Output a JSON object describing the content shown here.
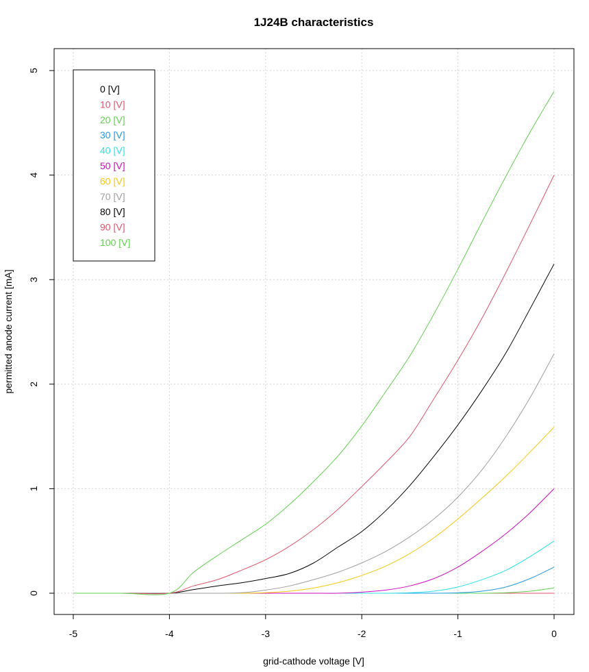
{
  "chart_data": {
    "type": "line",
    "title": "1J24B characteristics",
    "xlabel": "grid-cathode voltage [V]",
    "ylabel": "permitted anode current [mA]",
    "xlim": [
      -5,
      0
    ],
    "ylim": [
      0,
      5
    ],
    "xticks": [
      -5,
      -4,
      -3,
      -2,
      -1,
      0
    ],
    "yticks": [
      0,
      1,
      2,
      3,
      4,
      5
    ],
    "grid": true,
    "legend_position": "top-left",
    "x": [
      -5,
      -4.5,
      -4,
      -3.75,
      -3.5,
      -3.25,
      -3,
      -2.75,
      -2.5,
      -2.25,
      -2,
      -1.75,
      -1.5,
      -1.25,
      -1,
      -0.75,
      -0.5,
      -0.25,
      0
    ],
    "series": [
      {
        "name": "0 [V]",
        "color": "#000000",
        "values": [
          0,
          0,
          0,
          0,
          0,
          0,
          0,
          0,
          0,
          0,
          0,
          0,
          0,
          0,
          0,
          0,
          0,
          0,
          0
        ]
      },
      {
        "name": "10 [V]",
        "color": "#DF536B",
        "values": [
          0,
          0,
          0,
          0,
          0,
          0,
          0,
          0,
          0,
          0,
          0,
          0,
          0,
          0,
          0,
          0,
          0,
          0,
          0
        ]
      },
      {
        "name": "20 [V]",
        "color": "#61D04F",
        "values": [
          0,
          0,
          0,
          0,
          0,
          0,
          0,
          0,
          0,
          0,
          0,
          0,
          0,
          0,
          0,
          0,
          0.005,
          0.02,
          0.05
        ]
      },
      {
        "name": "30 [V]",
        "color": "#2297E6",
        "values": [
          0,
          0,
          0,
          0,
          0,
          0,
          0,
          0,
          0,
          0,
          0,
          0,
          0,
          0,
          0.004,
          0.02,
          0.06,
          0.14,
          0.25
        ]
      },
      {
        "name": "40 [V]",
        "color": "#28E2E5",
        "values": [
          0,
          0,
          0,
          0,
          0,
          0,
          0,
          0,
          0,
          0,
          0,
          0,
          0.005,
          0.02,
          0.06,
          0.13,
          0.22,
          0.35,
          0.5
        ]
      },
      {
        "name": "50 [V]",
        "color": "#CD0BBC",
        "values": [
          0,
          0,
          0,
          0,
          0,
          0,
          0,
          0,
          0,
          0,
          0.01,
          0.03,
          0.07,
          0.14,
          0.25,
          0.4,
          0.57,
          0.77,
          1.0
        ]
      },
      {
        "name": "60 [V]",
        "color": "#F5C710",
        "values": [
          0,
          0,
          0,
          0,
          0,
          0,
          0.005,
          0.02,
          0.05,
          0.1,
          0.17,
          0.26,
          0.38,
          0.53,
          0.71,
          0.91,
          1.12,
          1.35,
          1.59
        ]
      },
      {
        "name": "70 [V]",
        "color": "#9E9E9E",
        "values": [
          0,
          0,
          0,
          0,
          0,
          0.005,
          0.03,
          0.07,
          0.13,
          0.2,
          0.29,
          0.4,
          0.54,
          0.71,
          0.92,
          1.18,
          1.5,
          1.87,
          2.29
        ]
      },
      {
        "name": "80 [V]",
        "color": "#000000",
        "values": [
          0,
          0,
          0,
          0.035,
          0.07,
          0.1,
          0.14,
          0.19,
          0.29,
          0.44,
          0.59,
          0.79,
          1.03,
          1.31,
          1.61,
          1.94,
          2.3,
          2.72,
          3.15
        ]
      },
      {
        "name": "90 [V]",
        "color": "#DF536B",
        "values": [
          0,
          0,
          0,
          0.07,
          0.13,
          0.22,
          0.32,
          0.45,
          0.61,
          0.8,
          1.02,
          1.25,
          1.5,
          1.86,
          2.23,
          2.63,
          3.07,
          3.53,
          4.0
        ]
      },
      {
        "name": "100 [V]",
        "color": "#61D04F",
        "values": [
          0,
          0,
          0,
          0.2,
          0.36,
          0.51,
          0.66,
          0.85,
          1.07,
          1.31,
          1.6,
          1.93,
          2.27,
          2.67,
          3.1,
          3.55,
          3.99,
          4.41,
          4.8
        ]
      }
    ]
  }
}
